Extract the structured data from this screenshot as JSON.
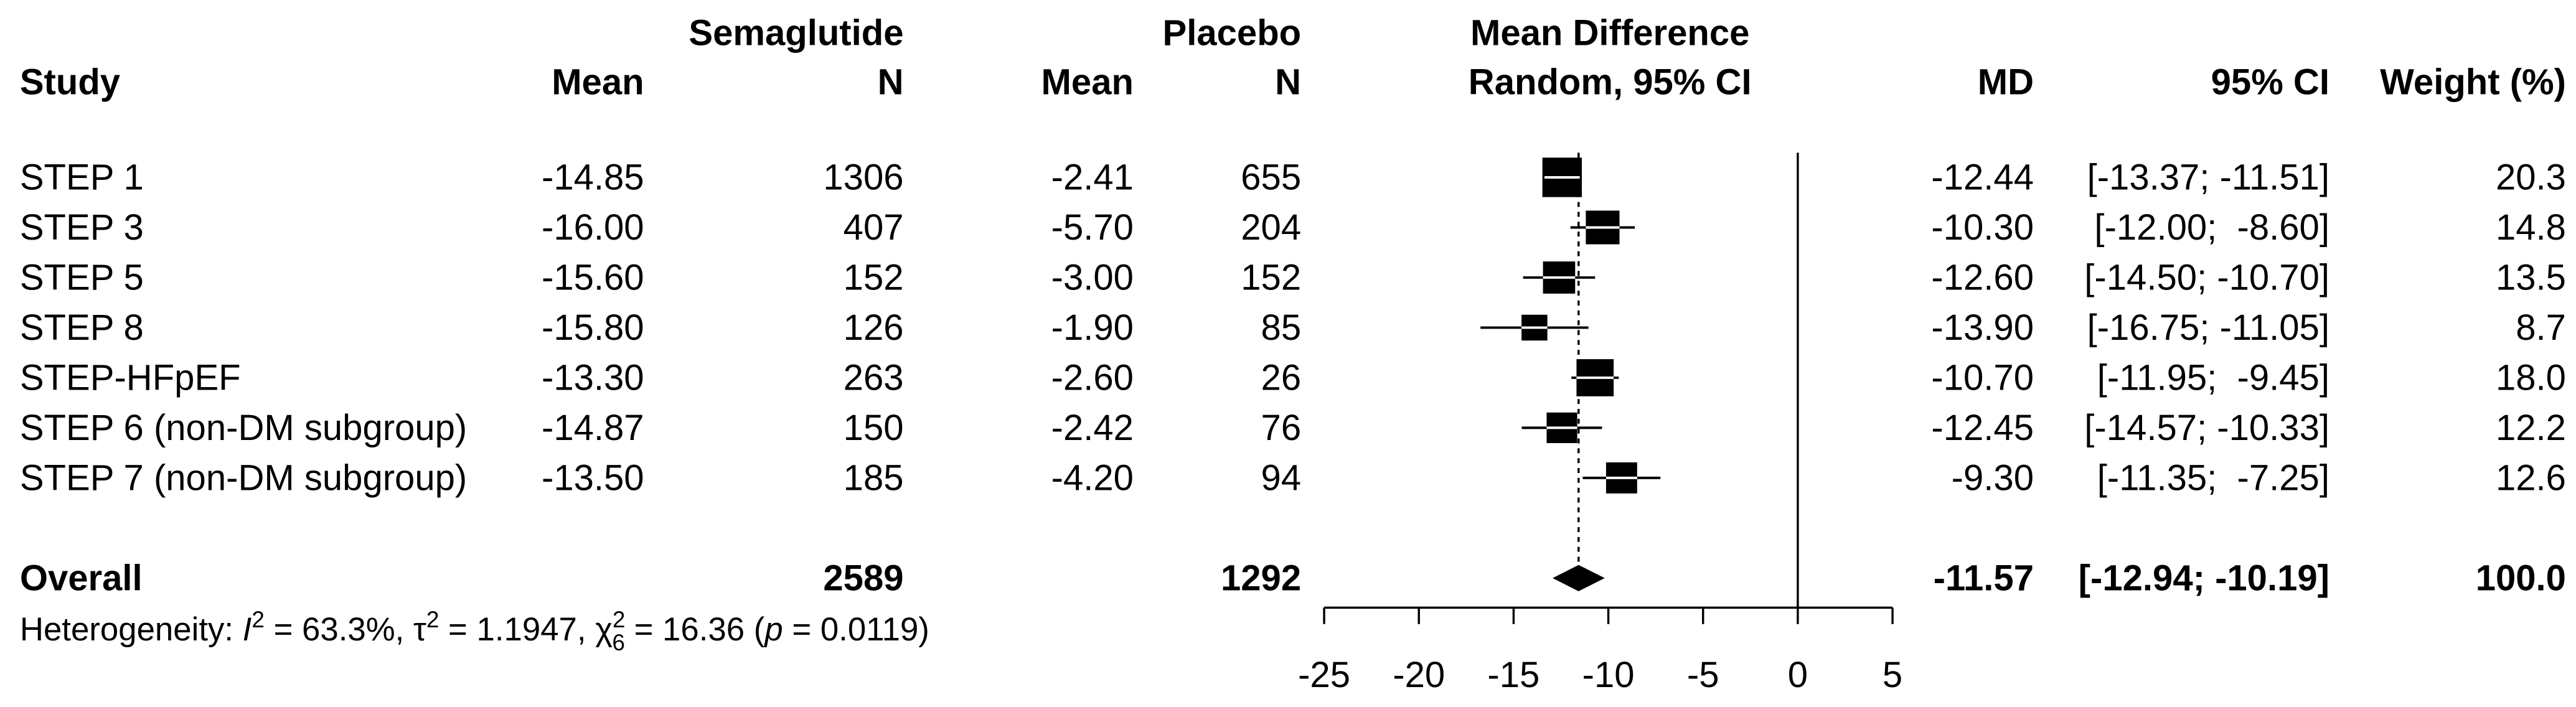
{
  "chart_data": {
    "type": "forest",
    "group_headers": [
      "Semaglutide",
      "Placebo",
      "Mean Difference"
    ],
    "columns": [
      "Study",
      "Mean",
      "N",
      "Mean",
      "N",
      "Random, 95% CI",
      "MD",
      "95% CI",
      "Weight (%)"
    ],
    "studies": [
      "STEP 1",
      "STEP 3",
      "STEP 5",
      "STEP 8",
      "STEP-HFpEF",
      "STEP 6 (non-DM subgroup)",
      "STEP 7 (non-DM subgroup)"
    ],
    "semaglutide_mean": [
      "-14.85",
      "-16.00",
      "-15.60",
      "-15.80",
      "-13.30",
      "-14.87",
      "-13.50"
    ],
    "semaglutide_n": [
      1306,
      407,
      152,
      126,
      263,
      150,
      185
    ],
    "placebo_mean": [
      "-2.41",
      "-5.70",
      "-3.00",
      "-1.90",
      "-2.60",
      "-2.42",
      "-4.20"
    ],
    "placebo_n": [
      655,
      204,
      152,
      85,
      26,
      76,
      94
    ],
    "md": {
      "values": [
        -12.44,
        -10.3,
        -12.6,
        -13.9,
        -10.7,
        -12.45,
        -9.3
      ],
      "value_labels": [
        "-12.44",
        "-10.30",
        "-12.60",
        "-13.90",
        "-10.70",
        "-12.45",
        "-9.30"
      ]
    },
    "ci_lower": [
      -13.37,
      -12.0,
      -14.5,
      -16.75,
      -11.95,
      -14.57,
      -11.35
    ],
    "ci_upper": [
      -11.51,
      -8.6,
      -10.7,
      -11.05,
      -9.45,
      -10.33,
      -7.25
    ],
    "ci_labels": [
      "[-13.37; -11.51]",
      "[-12.00;  -8.60]",
      "[-14.50; -10.70]",
      "[-16.75; -11.05]",
      "[-11.95;  -9.45]",
      "[-14.57; -10.33]",
      "[-11.35;  -7.25]"
    ],
    "weight": {
      "values": [
        20.3,
        14.8,
        13.5,
        8.7,
        18.0,
        12.2,
        12.6
      ],
      "value_labels": [
        "20.3",
        "14.8",
        "13.5",
        "8.7",
        "18.0",
        "12.2",
        "12.6"
      ]
    },
    "overall": {
      "label": "Overall",
      "semaglutide_n": 2589,
      "placebo_n": 1292,
      "md": -11.57,
      "ci_lower": -12.94,
      "ci_upper": -10.19,
      "ci_label": "[-12.94; -10.19]",
      "weight": 100,
      "weight_label": "100.0"
    },
    "heterogeneity": [
      "Heterogeneity: ",
      "I",
      "2",
      " = 63.3%, ",
      "τ",
      "2",
      " = 1.1947, ",
      "χ",
      "2",
      "6",
      " = 16.36 (",
      "p",
      " = 0.0119)"
    ],
    "xlim": [
      -25,
      5
    ],
    "xticks": [
      -25,
      -20,
      -15,
      -10,
      -5,
      0,
      5
    ],
    "null_line": 0,
    "color": "#000000"
  }
}
